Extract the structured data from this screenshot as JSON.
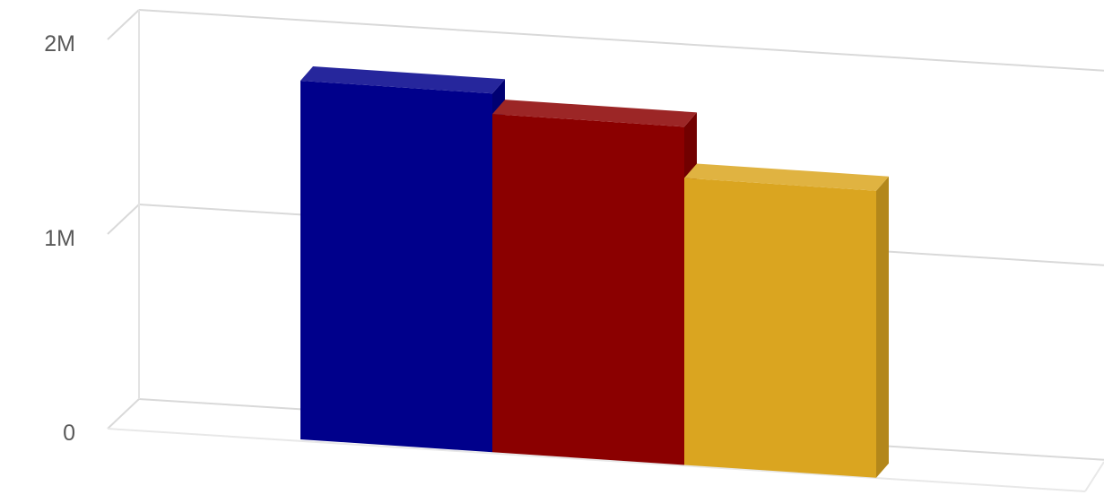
{
  "chart_data": {
    "type": "bar",
    "style": "3d-perspective",
    "categories": [
      "",
      "",
      ""
    ],
    "values": [
      1750000,
      1650000,
      1400000
    ],
    "colors": [
      "#00008B",
      "#8B0000",
      "#DAA520"
    ],
    "ylim": [
      0,
      2000000
    ],
    "ticks": [
      {
        "value": 0,
        "label": "0"
      },
      {
        "value": 1000000,
        "label": "1M"
      },
      {
        "value": 2000000,
        "label": "2M"
      }
    ],
    "grid": true,
    "legend": "none"
  }
}
